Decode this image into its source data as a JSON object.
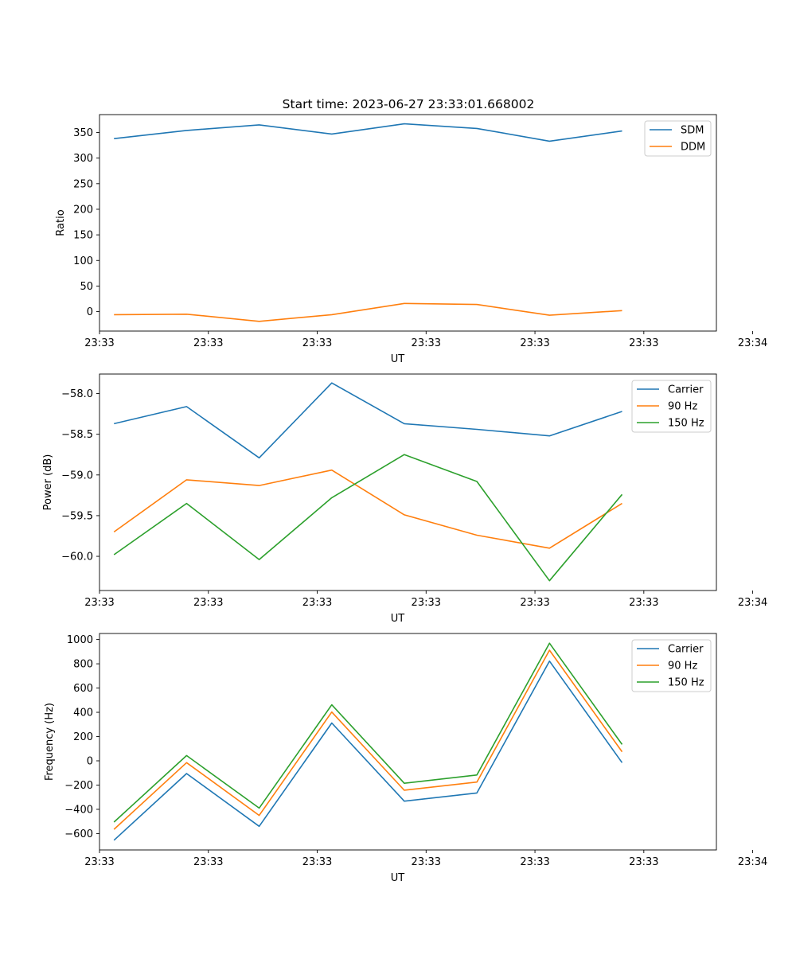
{
  "figure": {
    "title": "Start time: 2023-06-27 23:33:01.668002"
  },
  "chart_data": [
    {
      "type": "line",
      "xlabel": "UT",
      "ylabel": "Ratio",
      "x_tick_labels": [
        "23:33",
        "23:33",
        "23:33",
        "23:33",
        "23:33",
        "23:33",
        "23:34"
      ],
      "x": [
        1,
        2,
        3,
        4,
        5,
        6,
        7,
        8
      ],
      "xlim": [
        0.8,
        9.3
      ],
      "x_ticks": [
        0.8,
        2.3,
        3.8,
        5.3,
        6.8,
        8.3,
        9.8
      ],
      "ylim": [
        -38,
        385
      ],
      "y_ticks": [
        0,
        50,
        100,
        150,
        200,
        250,
        300,
        350
      ],
      "grid": false,
      "legend": "top-right",
      "series": [
        {
          "name": "SDM",
          "color": "#1f77b4",
          "values": [
            338,
            354,
            365,
            347,
            367,
            358,
            333,
            353
          ]
        },
        {
          "name": "DDM",
          "color": "#ff7f0e",
          "values": [
            -6,
            -5,
            -19,
            -6,
            16,
            14,
            -7,
            2
          ]
        }
      ]
    },
    {
      "type": "line",
      "xlabel": "UT",
      "ylabel": "Power (dB)",
      "x_tick_labels": [
        "23:33",
        "23:33",
        "23:33",
        "23:33",
        "23:33",
        "23:33",
        "23:34"
      ],
      "x": [
        1,
        2,
        3,
        4,
        5,
        6,
        7,
        8
      ],
      "xlim": [
        0.8,
        9.3
      ],
      "x_ticks": [
        0.8,
        2.3,
        3.8,
        5.3,
        6.8,
        8.3,
        9.8
      ],
      "ylim": [
        -60.42,
        -57.76
      ],
      "y_ticks": [
        -60.0,
        -59.5,
        -59.0,
        -58.5,
        -58.0
      ],
      "y_tick_labels": [
        "−60.0",
        "−59.5",
        "−59.0",
        "−58.5",
        "−58.0"
      ],
      "grid": false,
      "legend": "top-right",
      "series": [
        {
          "name": "Carrier",
          "color": "#1f77b4",
          "values": [
            -58.37,
            -58.16,
            -58.79,
            -57.87,
            -58.37,
            -58.44,
            -58.52,
            -58.22
          ]
        },
        {
          "name": "90 Hz",
          "color": "#ff7f0e",
          "values": [
            -59.7,
            -59.06,
            -59.13,
            -58.94,
            -59.49,
            -59.74,
            -59.9,
            -59.35
          ]
        },
        {
          "name": "150 Hz",
          "color": "#2ca02c",
          "values": [
            -59.98,
            -59.35,
            -60.04,
            -59.28,
            -58.75,
            -59.08,
            -60.3,
            -59.24
          ]
        }
      ]
    },
    {
      "type": "line",
      "xlabel": "UT",
      "ylabel": "Frequency (Hz)",
      "x_tick_labels": [
        "23:33",
        "23:33",
        "23:33",
        "23:33",
        "23:33",
        "23:33",
        "23:34"
      ],
      "x": [
        1,
        2,
        3,
        4,
        5,
        6,
        7,
        8
      ],
      "xlim": [
        0.8,
        9.3
      ],
      "x_ticks": [
        0.8,
        2.3,
        3.8,
        5.3,
        6.8,
        8.3,
        9.8
      ],
      "ylim": [
        -735,
        1050
      ],
      "y_ticks": [
        -600,
        -400,
        -200,
        0,
        200,
        400,
        600,
        800,
        1000
      ],
      "y_tick_labels": [
        "−600",
        "−400",
        "−200",
        "0",
        "200",
        "400",
        "600",
        "800",
        "1000"
      ],
      "grid": false,
      "legend": "top-right",
      "series": [
        {
          "name": "Carrier",
          "color": "#1f77b4",
          "values": [
            -655,
            -105,
            -540,
            312,
            -333,
            -265,
            822,
            -15
          ]
        },
        {
          "name": "90 Hz",
          "color": "#ff7f0e",
          "values": [
            -565,
            -15,
            -450,
            402,
            -243,
            -175,
            912,
            75
          ]
        },
        {
          "name": "150 Hz",
          "color": "#2ca02c",
          "values": [
            -505,
            43,
            -390,
            462,
            -185,
            -117,
            970,
            135
          ]
        }
      ]
    }
  ]
}
